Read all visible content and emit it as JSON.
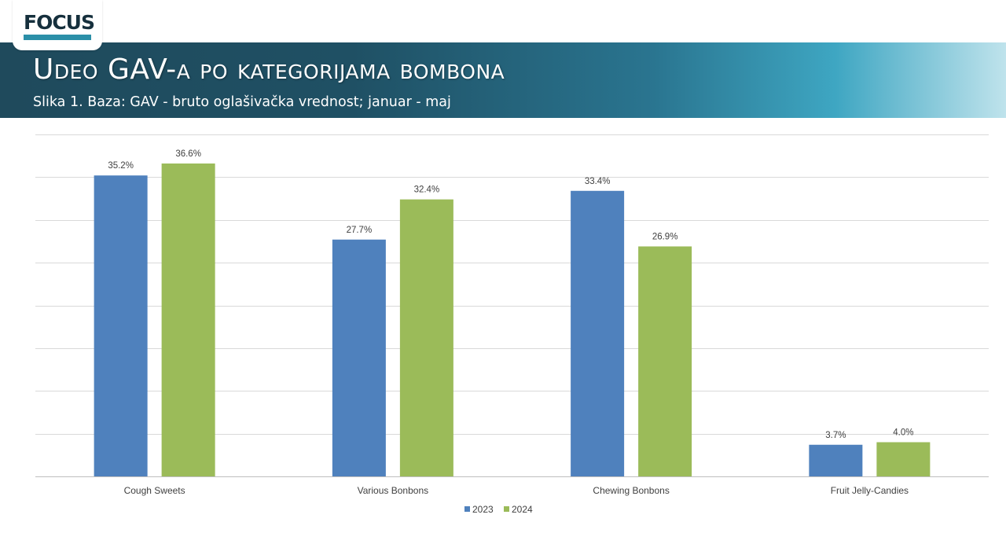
{
  "logo": {
    "text": "FOCUS"
  },
  "header": {
    "title": "Udeo GAV-a po kategorijama bombona",
    "subtitle": "Slika 1. Baza: GAV - bruto oglašivačka vrednost; januar - maj"
  },
  "colors": {
    "series_2023": "#4f81bd",
    "series_2024": "#9bbb59",
    "banner_dark": "#1f4a5c",
    "banner_light": "#3ea6c2"
  },
  "chart_data": {
    "type": "bar",
    "categories": [
      "Cough Sweets",
      "Various Bonbons",
      "Chewing Bonbons",
      "Fruit Jelly-Candies"
    ],
    "series": [
      {
        "name": "2023",
        "values": [
          35.2,
          27.7,
          33.4,
          3.7
        ],
        "labels": [
          "35.2%",
          "27.7%",
          "33.4%",
          "3.7%"
        ],
        "color": "#4f81bd"
      },
      {
        "name": "2024",
        "values": [
          36.6,
          32.4,
          26.9,
          4.0
        ],
        "labels": [
          "36.6%",
          "32.4%",
          "26.9%",
          "4.0%"
        ],
        "color": "#9bbb59"
      }
    ],
    "ylim": [
      0,
      40
    ],
    "grid": true,
    "legend_position": "bottom"
  }
}
